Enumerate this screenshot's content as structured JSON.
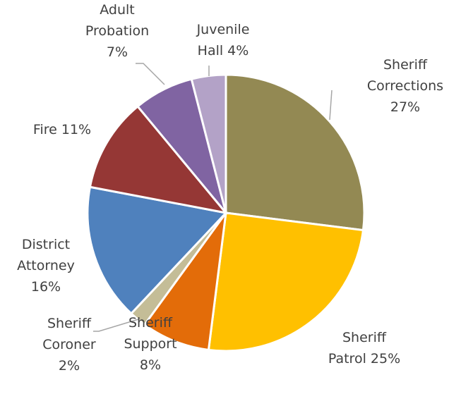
{
  "chart_data": {
    "type": "pie",
    "title": "",
    "legend": "none",
    "slices": [
      {
        "label_lines": [
          "Sheriff",
          "Corrections",
          "27%"
        ],
        "value": 27,
        "color": "#938953"
      },
      {
        "label_lines": [
          "Sheriff",
          "Patrol 25%"
        ],
        "value": 25,
        "color": "#ffc000"
      },
      {
        "label_lines": [
          "Sheriff",
          "Support",
          "8%"
        ],
        "value": 8,
        "color": "#e36c09"
      },
      {
        "label_lines": [
          "Sheriff",
          "Coroner",
          "2%"
        ],
        "value": 2,
        "color": "#c4bd97"
      },
      {
        "label_lines": [
          "District",
          "Attorney",
          "16%"
        ],
        "value": 16,
        "color": "#4f81bd"
      },
      {
        "label_lines": [
          "Fire 11%"
        ],
        "value": 11,
        "color": "#953735"
      },
      {
        "label_lines": [
          "Adult",
          "Probation",
          "7%"
        ],
        "value": 7,
        "color": "#8064a2"
      },
      {
        "label_lines": [
          "Juvenile",
          "Hall 4%"
        ],
        "value": 4,
        "color": "#b3a2c7"
      }
    ]
  }
}
